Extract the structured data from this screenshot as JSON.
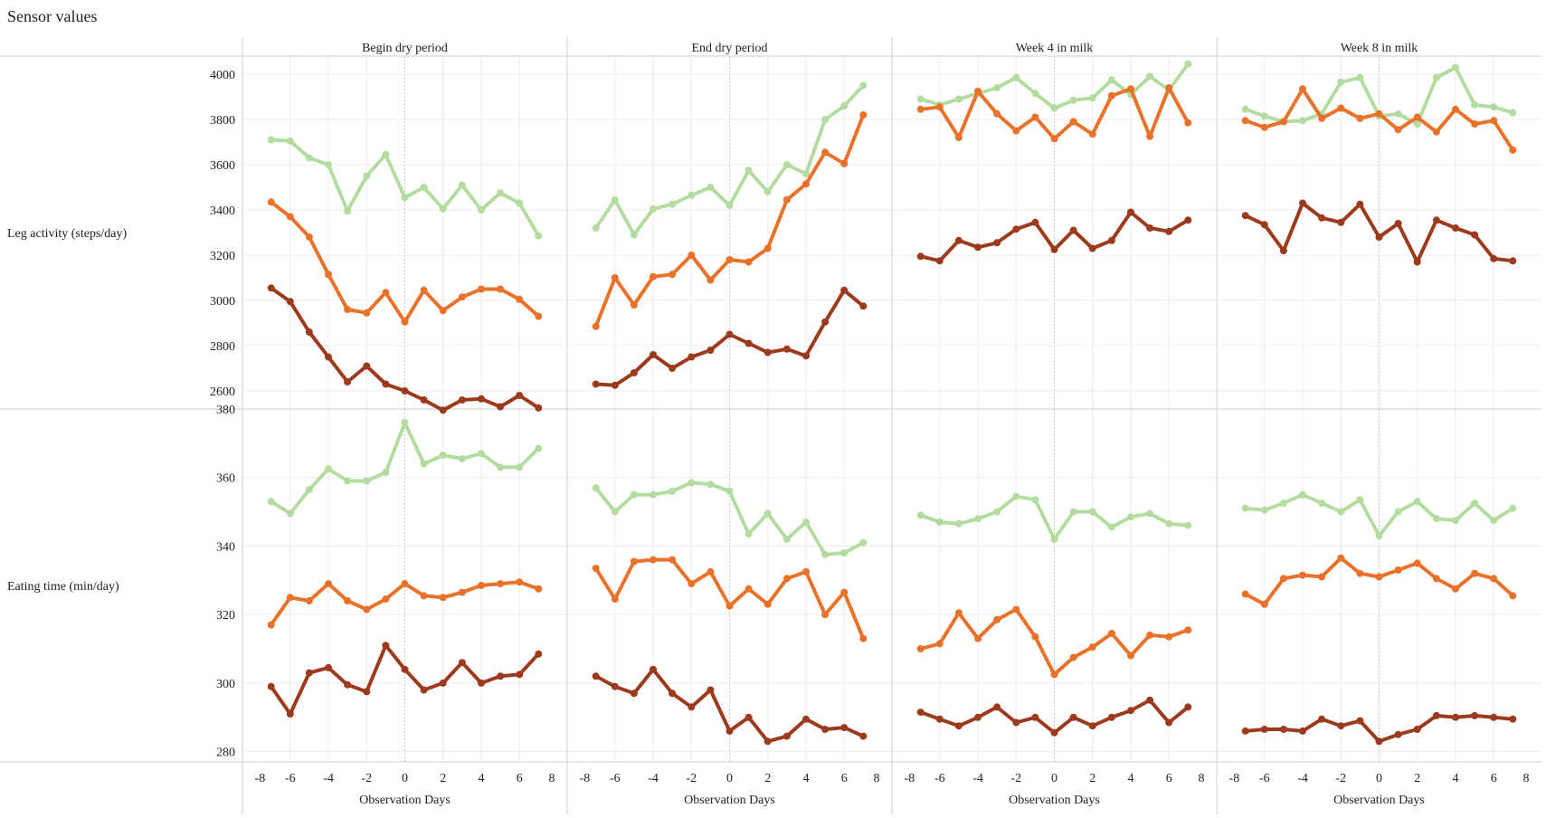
{
  "title": "Sensor values",
  "chart_data": {
    "type": "line",
    "title": "Sensor values",
    "columns": [
      "Begin dry period",
      "End dry period",
      "Week 4 in milk",
      "Week 8 in milk"
    ],
    "rows": [
      {
        "label": "Leg activity (steps/day)",
        "ylim": [
          2520,
          4080
        ],
        "ticks": [
          2600,
          2800,
          3000,
          3200,
          3400,
          3600,
          3800,
          4000
        ]
      },
      {
        "label": "Eating time (min/day)",
        "ylim": [
          277,
          380
        ],
        "ticks": [
          280,
          300,
          320,
          340,
          360,
          380
        ]
      }
    ],
    "xlabel": "Observation Days",
    "xlim": [
      -8.5,
      8.5
    ],
    "xticks": [
      -8,
      -6,
      -4,
      -2,
      0,
      2,
      4,
      6,
      8
    ],
    "x": [
      -7,
      -6,
      -5,
      -4,
      -3,
      -2,
      -1,
      0,
      1,
      2,
      3,
      4,
      5,
      6,
      7
    ],
    "series_colors": [
      "#b5dca0",
      "#e8722a",
      "#9c3a1e"
    ],
    "grid": true,
    "panels": [
      {
        "row": 0,
        "col": 0,
        "series": [
          [
            3710,
            3705,
            3630,
            3600,
            3395,
            3550,
            3645,
            3455,
            3500,
            3405,
            3510,
            3400,
            3475,
            3430,
            3285
          ],
          [
            3435,
            3370,
            3280,
            3115,
            2960,
            2945,
            3035,
            2905,
            3045,
            2955,
            3015,
            3050,
            3050,
            3005,
            2930
          ],
          [
            3055,
            2995,
            2860,
            2750,
            2640,
            2710,
            2630,
            2600,
            2560,
            2515,
            2560,
            2565,
            2530,
            2580,
            2525
          ]
        ]
      },
      {
        "row": 0,
        "col": 1,
        "series": [
          [
            3320,
            3445,
            3290,
            3405,
            3425,
            3465,
            3500,
            3420,
            3575,
            3480,
            3600,
            3560,
            3800,
            3860,
            3950
          ],
          [
            2885,
            3100,
            2980,
            3105,
            3115,
            3200,
            3090,
            3180,
            3170,
            3230,
            3445,
            3515,
            3655,
            3605,
            3820
          ],
          [
            2630,
            2625,
            2680,
            2760,
            2700,
            2750,
            2780,
            2850,
            2810,
            2770,
            2785,
            2755,
            2905,
            3045,
            2975
          ]
        ]
      },
      {
        "row": 0,
        "col": 2,
        "series": [
          [
            3890,
            3865,
            3890,
            3915,
            3940,
            3985,
            3915,
            3850,
            3885,
            3895,
            3975,
            3910,
            3990,
            3930,
            4045
          ],
          [
            3845,
            3855,
            3720,
            3925,
            3825,
            3750,
            3810,
            3715,
            3790,
            3735,
            3905,
            3935,
            3725,
            3940,
            3785
          ],
          [
            3195,
            3175,
            3265,
            3235,
            3255,
            3315,
            3345,
            3225,
            3310,
            3230,
            3265,
            3390,
            3320,
            3305,
            3355
          ]
        ]
      },
      {
        "row": 0,
        "col": 3,
        "series": [
          [
            3845,
            3815,
            3790,
            3795,
            3825,
            3965,
            3985,
            3815,
            3825,
            3780,
            3985,
            4030,
            3865,
            3855,
            3830
          ],
          [
            3795,
            3765,
            3790,
            3935,
            3805,
            3850,
            3805,
            3825,
            3755,
            3810,
            3745,
            3845,
            3780,
            3795,
            3665
          ],
          [
            3375,
            3335,
            3220,
            3430,
            3365,
            3345,
            3425,
            3280,
            3340,
            3170,
            3355,
            3320,
            3290,
            3185,
            3175
          ]
        ]
      },
      {
        "row": 1,
        "col": 0,
        "series": [
          [
            353,
            349.5,
            356.5,
            362.5,
            359,
            359,
            361.5,
            376,
            364,
            366.5,
            365.5,
            367,
            363,
            363,
            368.5
          ],
          [
            317,
            325,
            324,
            329,
            324,
            321.5,
            324.5,
            329,
            325.5,
            325,
            326.5,
            328.5,
            329,
            329.5,
            327.5
          ],
          [
            299,
            291,
            303,
            304.5,
            299.5,
            297.5,
            311,
            304,
            298,
            300,
            306,
            300,
            302,
            302.5,
            308.5
          ]
        ]
      },
      {
        "row": 1,
        "col": 1,
        "series": [
          [
            357,
            350,
            355,
            355,
            356,
            358.5,
            358,
            356,
            343.5,
            349.5,
            342,
            347,
            337.5,
            338,
            341
          ],
          [
            333.5,
            324.5,
            335.5,
            336,
            336,
            329,
            332.5,
            322.5,
            327.5,
            323,
            330.5,
            332.5,
            320,
            326.5,
            313
          ],
          [
            302,
            299,
            297,
            304,
            297,
            293,
            298,
            286,
            290,
            283,
            284.5,
            289.5,
            286.5,
            287,
            284.5
          ]
        ]
      },
      {
        "row": 1,
        "col": 2,
        "series": [
          [
            349,
            347,
            346.5,
            348,
            350,
            354.5,
            353.5,
            342,
            350,
            350,
            345.5,
            348.5,
            349.5,
            346.5,
            346
          ],
          [
            310,
            311.5,
            320.5,
            313,
            318.5,
            321.5,
            313.5,
            302.5,
            307.5,
            310.5,
            314.5,
            308,
            314,
            313.5,
            315.5
          ],
          [
            291.5,
            289.5,
            287.5,
            290,
            293,
            288.5,
            290,
            285.5,
            290,
            287.5,
            290,
            292,
            295,
            288.5,
            293
          ]
        ]
      },
      {
        "row": 1,
        "col": 3,
        "series": [
          [
            351,
            350.5,
            352.5,
            355,
            352.5,
            350,
            353.5,
            343,
            350,
            353,
            348,
            347.5,
            352.5,
            347.5,
            351
          ],
          [
            326,
            323,
            330.5,
            331.5,
            331,
            336.5,
            332,
            331,
            333,
            335,
            330.5,
            327.5,
            332,
            330.5,
            325.5
          ],
          [
            286,
            286.5,
            286.5,
            286,
            289.5,
            287.5,
            289,
            283,
            285,
            286.5,
            290.5,
            290,
            290.5,
            290,
            289.5
          ]
        ]
      }
    ]
  }
}
